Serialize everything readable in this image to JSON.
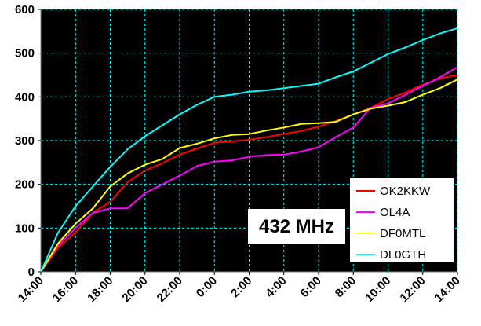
{
  "chart_data": {
    "type": "line",
    "title": "",
    "annotation": "432 MHz",
    "xlabel": "",
    "ylabel": "",
    "categories": [
      "14:00",
      "15:00",
      "16:00",
      "17:00",
      "18:00",
      "19:00",
      "20:00",
      "21:00",
      "22:00",
      "23:00",
      "0:00",
      "1:00",
      "2:00",
      "3:00",
      "4:00",
      "5:00",
      "6:00",
      "7:00",
      "8:00",
      "9:00",
      "10:00",
      "11:00",
      "12:00",
      "13:00",
      "14:00"
    ],
    "x_tick_labels": [
      "14:00",
      "16:00",
      "18:00",
      "20:00",
      "22:00",
      "0:00",
      "2:00",
      "4:00",
      "6:00",
      "8:00",
      "10:00",
      "12:00",
      "14:00"
    ],
    "y_tick_labels": [
      "0",
      "100",
      "200",
      "300",
      "400",
      "500",
      "600"
    ],
    "ylim": [
      0,
      600
    ],
    "grid": true,
    "legend_position": "bottom-right",
    "plot_background": "#000000",
    "grid_color": "#00ffff",
    "series": [
      {
        "name": "OK2KKW",
        "color": "#ff0000",
        "values": [
          0,
          55,
          90,
          135,
          160,
          205,
          232,
          248,
          268,
          282,
          295,
          298,
          302,
          308,
          315,
          322,
          332,
          345,
          360,
          375,
          395,
          410,
          428,
          442,
          450
        ]
      },
      {
        "name": "OL4A",
        "color": "#ff00ff",
        "values": [
          0,
          60,
          100,
          135,
          145,
          145,
          180,
          200,
          220,
          242,
          252,
          255,
          263,
          267,
          268,
          275,
          285,
          308,
          330,
          375,
          385,
          405,
          425,
          445,
          468
        ]
      },
      {
        "name": "DF0MTL",
        "color": "#ffff00",
        "values": [
          0,
          65,
          110,
          145,
          195,
          225,
          245,
          258,
          283,
          293,
          305,
          313,
          315,
          323,
          330,
          338,
          340,
          343,
          360,
          373,
          380,
          388,
          405,
          420,
          440
        ]
      },
      {
        "name": "DL0GTH",
        "color": "#00ffff",
        "values": [
          0,
          90,
          150,
          195,
          240,
          280,
          310,
          335,
          360,
          382,
          400,
          405,
          412,
          415,
          420,
          425,
          430,
          445,
          458,
          478,
          498,
          513,
          530,
          545,
          557
        ]
      }
    ]
  }
}
